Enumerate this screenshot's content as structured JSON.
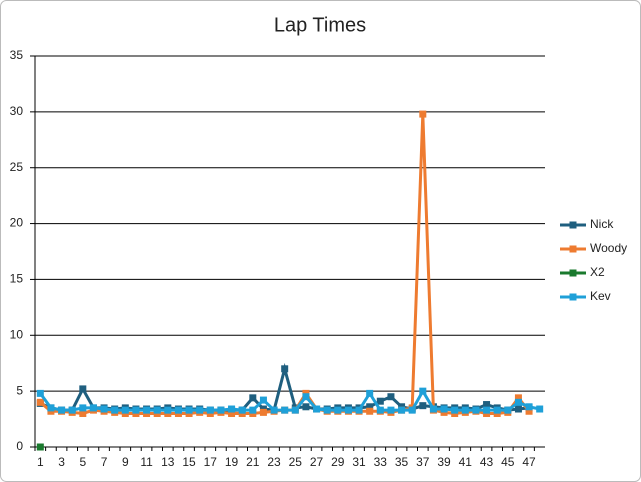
{
  "chart_data": {
    "type": "line",
    "title": "Lap Times",
    "categories": [
      1,
      null,
      3,
      null,
      5,
      null,
      7,
      null,
      9,
      null,
      11,
      null,
      13,
      null,
      15,
      null,
      17,
      null,
      19,
      null,
      21,
      null,
      23,
      null,
      25,
      null,
      27,
      null,
      29,
      null,
      31,
      null,
      33,
      null,
      35,
      null,
      37,
      null,
      39,
      null,
      41,
      null,
      43,
      null,
      45,
      null,
      47,
      null
    ],
    "series": [
      {
        "name": "Nick",
        "color": "#1f5f7f",
        "values": [
          3.9,
          3.5,
          3.3,
          3.3,
          5.2,
          3.5,
          3.5,
          3.4,
          3.5,
          3.4,
          3.4,
          3.4,
          3.5,
          3.4,
          3.4,
          3.4,
          3.3,
          3.3,
          3.3,
          3.3,
          4.4,
          3.4,
          3.3,
          7.0,
          3.5,
          3.6,
          3.4,
          3.4,
          3.5,
          3.5,
          3.5,
          3.6,
          4.1,
          4.5,
          3.6,
          3.4,
          3.7,
          3.6,
          3.5,
          3.5,
          3.5,
          3.4,
          3.8,
          3.5,
          3.3,
          3.4,
          3.5,
          null
        ]
      },
      {
        "name": "Woody",
        "color": "#ee7b30",
        "values": [
          4.0,
          3.2,
          3.2,
          3.1,
          3.0,
          3.3,
          3.2,
          3.1,
          3.0,
          3.0,
          3.0,
          3.0,
          3.0,
          3.0,
          3.0,
          3.1,
          3.0,
          3.1,
          3.0,
          3.0,
          3.0,
          3.1,
          3.2,
          3.3,
          3.3,
          4.8,
          3.4,
          3.2,
          3.2,
          3.2,
          3.2,
          3.2,
          3.2,
          3.1,
          3.3,
          3.5,
          29.8,
          3.3,
          3.1,
          3.0,
          3.1,
          3.2,
          3.0,
          3.0,
          3.1,
          4.4,
          3.2,
          null
        ]
      },
      {
        "name": "X2",
        "color": "#1a7a2e",
        "values": [
          0,
          null,
          null,
          null,
          null,
          null,
          null,
          null,
          null,
          null,
          null,
          null,
          null,
          null,
          null,
          null,
          null,
          null,
          null,
          null,
          null,
          null,
          null,
          null,
          null,
          null,
          null,
          null,
          null,
          null,
          null,
          null,
          null,
          null,
          null,
          null,
          null,
          null,
          null,
          null,
          null,
          null,
          null,
          null,
          null,
          null,
          null,
          null
        ]
      },
      {
        "name": "Kev",
        "color": "#1fa0d8",
        "values": [
          4.8,
          3.5,
          3.3,
          3.3,
          3.5,
          3.5,
          3.4,
          3.3,
          3.3,
          3.3,
          3.3,
          3.3,
          3.3,
          3.3,
          3.3,
          3.3,
          3.3,
          3.3,
          3.4,
          3.3,
          3.3,
          4.2,
          3.3,
          3.3,
          3.3,
          4.5,
          3.4,
          3.3,
          3.3,
          3.3,
          3.3,
          4.8,
          3.3,
          3.3,
          3.3,
          3.3,
          5.0,
          3.4,
          3.4,
          3.3,
          3.3,
          3.3,
          3.3,
          3.3,
          3.3,
          4.0,
          3.6,
          3.4
        ]
      }
    ],
    "ylim": [
      0,
      35
    ],
    "yticks": [
      0,
      5,
      10,
      15,
      20,
      25,
      30,
      35
    ],
    "grid": true,
    "legend": "right"
  }
}
